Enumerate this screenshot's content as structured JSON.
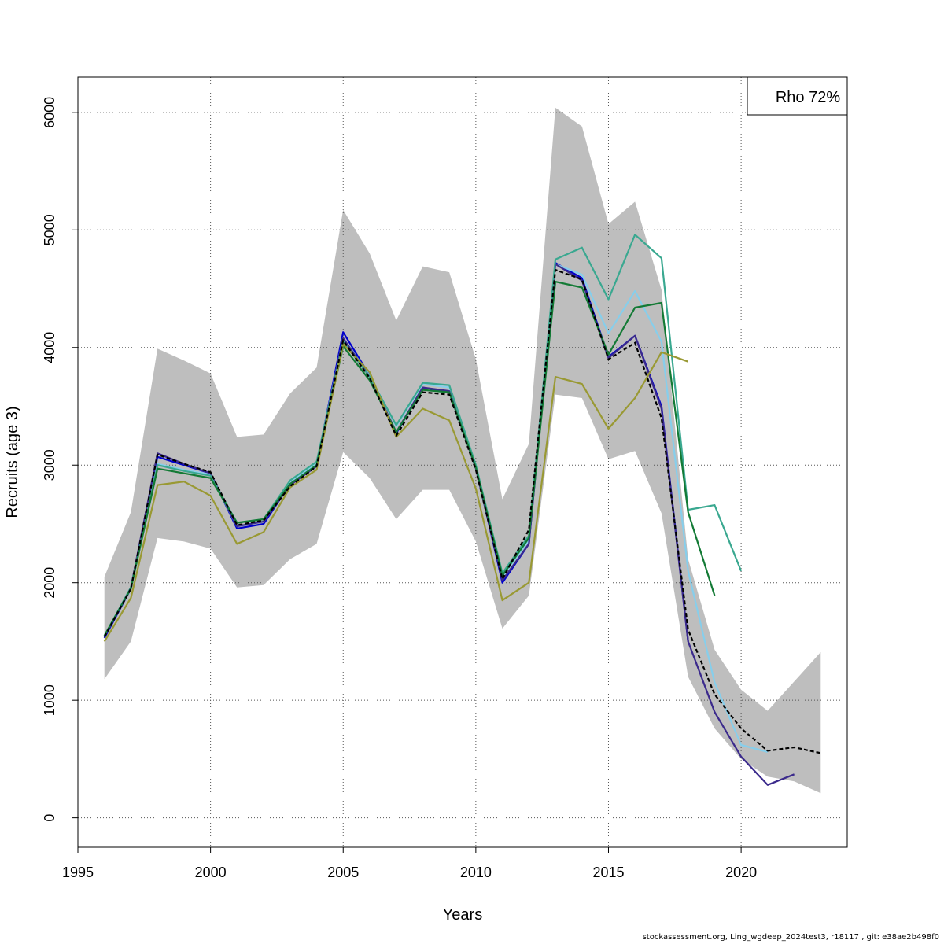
{
  "chart_data": {
    "type": "line",
    "xlabel": "Years",
    "ylabel": "Recruits (age 3)",
    "xlim": [
      1995,
      2024
    ],
    "ylim": [
      -250,
      6300
    ],
    "xticks": [
      1995,
      2000,
      2005,
      2010,
      2015,
      2020
    ],
    "yticks": [
      0,
      1000,
      2000,
      3000,
      4000,
      5000,
      6000
    ],
    "grid": true,
    "legend_position": "top-right",
    "legend_text": "Rho 72%",
    "confidence_band": {
      "color": "#bebebe",
      "x": [
        1996,
        1997,
        1998,
        1999,
        2000,
        2001,
        2002,
        2003,
        2004,
        2005,
        2006,
        2007,
        2008,
        2009,
        2010,
        2011,
        2012,
        2013,
        2014,
        2015,
        2016,
        2017,
        2018,
        2019,
        2020,
        2021,
        2022,
        2023
      ],
      "upper": [
        2050,
        2600,
        3990,
        3890,
        3780,
        3240,
        3260,
        3610,
        3830,
        5170,
        4800,
        4230,
        4690,
        4640,
        3900,
        2710,
        3180,
        6040,
        5880,
        5050,
        5240,
        4490,
        2200,
        1430,
        1090,
        910,
        1160,
        1410
      ],
      "lower": [
        1180,
        1500,
        2380,
        2350,
        2290,
        1960,
        1980,
        2200,
        2330,
        3110,
        2890,
        2540,
        2790,
        2790,
        2350,
        1610,
        1890,
        3600,
        3570,
        3050,
        3120,
        2590,
        1200,
        760,
        500,
        350,
        310,
        210
      ]
    },
    "series": [
      {
        "color": "#000000",
        "dashed": true,
        "x": [
          1996,
          1997,
          1998,
          1999,
          2000,
          2001,
          2002,
          2003,
          2004,
          2005,
          2006,
          2007,
          2008,
          2009,
          2010,
          2011,
          2012,
          2013,
          2014,
          2015,
          2016,
          2017,
          2018,
          2019,
          2020,
          2021,
          2022,
          2023
        ],
        "values": [
          1540,
          1950,
          3090,
          3010,
          2940,
          2490,
          2530,
          2820,
          2990,
          4060,
          3740,
          3250,
          3620,
          3600,
          2960,
          2030,
          2450,
          4660,
          4580,
          3900,
          4040,
          3400,
          1600,
          1050,
          760,
          570,
          600,
          550
        ]
      },
      {
        "color": "#0000cc",
        "x": [
          1996,
          1997,
          1998,
          1999,
          2000,
          2001,
          2002,
          2003,
          2004,
          2005,
          2006,
          2007,
          2008,
          2009,
          2010,
          2011,
          2012,
          2013,
          2014,
          2015,
          2016,
          2017,
          2018
        ],
        "values": [
          1530,
          1950,
          3070,
          3000,
          2930,
          2460,
          2500,
          2840,
          3000,
          4130,
          3760,
          3270,
          3660,
          3620,
          2980,
          2000,
          2330,
          4720,
          4590,
          3920,
          4100,
          3500,
          1500
        ]
      },
      {
        "color": "#87ceeb",
        "x": [
          1996,
          1997,
          1998,
          1999,
          2000,
          2001,
          2002,
          2003,
          2004,
          2005,
          2006,
          2007,
          2008,
          2009,
          2010,
          2011,
          2012,
          2013,
          2014,
          2015,
          2016,
          2017,
          2018,
          2019,
          2020,
          2021
        ],
        "values": [
          1545,
          1960,
          3010,
          2960,
          2920,
          2480,
          2520,
          2860,
          3010,
          4080,
          3760,
          3330,
          3690,
          3660,
          3000,
          2050,
          2360,
          4710,
          4620,
          4120,
          4480,
          4050,
          2100,
          1150,
          620,
          560
        ]
      },
      {
        "color": "#3b2a8c",
        "x": [
          1996,
          1997,
          1998,
          1999,
          2000,
          2001,
          2002,
          2003,
          2004,
          2005,
          2006,
          2007,
          2008,
          2009,
          2010,
          2011,
          2012,
          2013,
          2014,
          2015,
          2016,
          2017,
          2018,
          2019,
          2020,
          2021,
          2022
        ],
        "values": [
          1540,
          1960,
          3100,
          3010,
          2930,
          2480,
          2520,
          2830,
          2990,
          4080,
          3750,
          3280,
          3660,
          3630,
          2970,
          2020,
          2330,
          4710,
          4570,
          3910,
          4100,
          3480,
          1500,
          900,
          520,
          280,
          370
        ]
      },
      {
        "color": "#3aa890",
        "x": [
          1996,
          1997,
          1998,
          1999,
          2000,
          2001,
          2002,
          2003,
          2004,
          2005,
          2006,
          2007,
          2008,
          2009,
          2010,
          2011,
          2012,
          2013,
          2014,
          2015,
          2016,
          2017,
          2018,
          2019,
          2020
        ],
        "values": [
          1550,
          1960,
          3000,
          2950,
          2910,
          2510,
          2540,
          2870,
          3030,
          4050,
          3750,
          3340,
          3700,
          3680,
          3000,
          2080,
          2400,
          4750,
          4850,
          4410,
          4960,
          4760,
          2620,
          2660,
          2100
        ]
      },
      {
        "color": "#137a35",
        "x": [
          1996,
          1997,
          1998,
          1999,
          2000,
          2001,
          2002,
          2003,
          2004,
          2005,
          2006,
          2007,
          2008,
          2009,
          2010,
          2011,
          2012,
          2013,
          2014,
          2015,
          2016,
          2017,
          2018,
          2019
        ],
        "values": [
          1550,
          1950,
          2970,
          2930,
          2890,
          2510,
          2540,
          2840,
          3000,
          4010,
          3720,
          3280,
          3640,
          3620,
          2980,
          2060,
          2380,
          4560,
          4510,
          3940,
          4340,
          4380,
          2600,
          1890
        ]
      },
      {
        "color": "#999933",
        "x": [
          1996,
          1997,
          1998,
          1999,
          2000,
          2001,
          2002,
          2003,
          2004,
          2005,
          2006,
          2007,
          2008,
          2009,
          2010,
          2011,
          2012,
          2013,
          2014,
          2015,
          2016,
          2017,
          2018
        ],
        "values": [
          1500,
          1870,
          2830,
          2860,
          2740,
          2330,
          2430,
          2810,
          2960,
          4030,
          3790,
          3240,
          3480,
          3380,
          2800,
          1850,
          2000,
          3750,
          3690,
          3310,
          3570,
          3960,
          3880
        ]
      }
    ]
  },
  "footer": "stockassessment.org, Ling_wgdeep_2024test3, r18117 , git: e38ae2b498f0"
}
